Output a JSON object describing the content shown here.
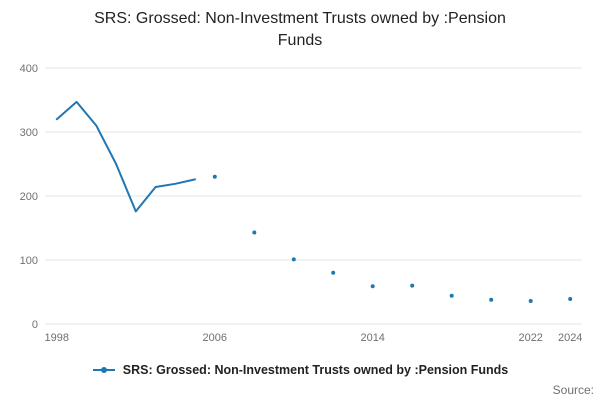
{
  "chart_data": {
    "type": "line",
    "title": "SRS: Grossed: Non-Investment Trusts owned by :Pension Funds",
    "xlabel": "",
    "ylabel": "",
    "xlim": [
      1997.4,
      2024.6
    ],
    "ylim": [
      0,
      400
    ],
    "xticks": [
      1998,
      2006,
      2014,
      2022,
      2024
    ],
    "yticks": [
      0,
      100,
      200,
      300,
      400
    ],
    "grid": true,
    "grid_color": "#e6e6e6",
    "tick_label_color": "#707071",
    "legend_position": "bottom",
    "series": [
      {
        "name": "SRS: Grossed: Non-Investment Trusts owned by :Pension Funds",
        "color": "#1f77b4",
        "line_points": [
          [
            1998,
            320
          ],
          [
            1999,
            347
          ],
          [
            2000,
            310
          ],
          [
            2001,
            250
          ],
          [
            2002,
            176
          ],
          [
            2003,
            214
          ],
          [
            2004,
            219
          ],
          [
            2005,
            226
          ]
        ],
        "scatter_points": [
          [
            2006,
            230
          ],
          [
            2008,
            143
          ],
          [
            2010,
            101
          ],
          [
            2012,
            80
          ],
          [
            2014,
            59
          ],
          [
            2016,
            60
          ],
          [
            2018,
            44
          ],
          [
            2020,
            38
          ],
          [
            2022,
            36
          ],
          [
            2024,
            39
          ]
        ]
      }
    ]
  },
  "footer": {
    "source_label": "Source:"
  }
}
